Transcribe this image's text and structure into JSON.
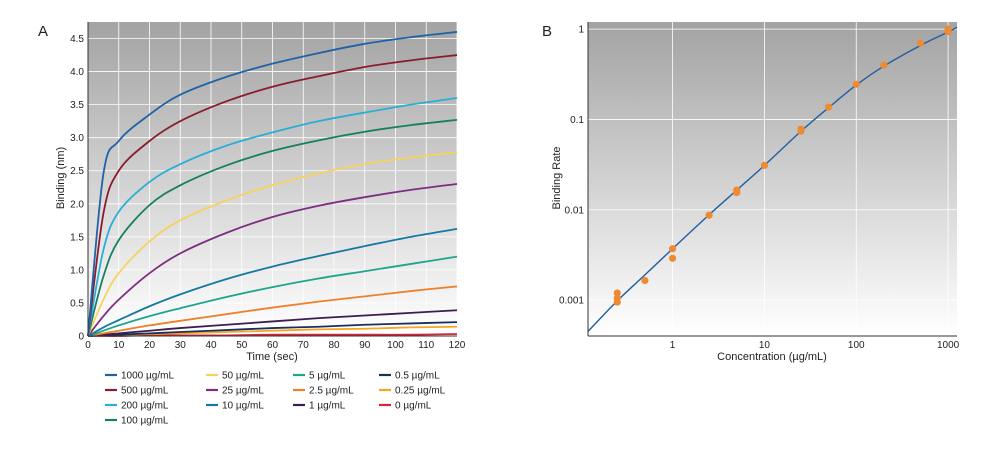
{
  "chart_data": [
    {
      "panel": "A",
      "type": "line",
      "xlabel": "Time (sec)",
      "ylabel": "Binding (nm)",
      "xlim": [
        0,
        120
      ],
      "ylim": [
        0,
        4.75
      ],
      "xticks": [
        0,
        10,
        20,
        30,
        40,
        50,
        60,
        70,
        80,
        90,
        100,
        110,
        120
      ],
      "yticks": [
        0,
        0.5,
        1.0,
        1.5,
        2.0,
        2.5,
        3.0,
        3.5,
        4.0,
        4.5
      ],
      "yticklabels": [
        "0",
        "0.5",
        "1.0",
        "1.5",
        "2.0",
        "2.5",
        "3.0",
        "3.5",
        "4.0",
        "4.5"
      ],
      "grid": true,
      "legend_position": "below",
      "x": [
        0,
        5,
        10,
        20,
        30,
        45,
        60,
        75,
        90,
        105,
        120
      ],
      "series": [
        {
          "name": "1000 µg/mL",
          "color": "#1f63a6",
          "values": [
            0,
            2.45,
            2.95,
            3.35,
            3.65,
            3.92,
            4.12,
            4.28,
            4.42,
            4.52,
            4.6
          ]
        },
        {
          "name": "500 µg/mL",
          "color": "#8b1c2c",
          "values": [
            0,
            1.85,
            2.5,
            2.95,
            3.25,
            3.55,
            3.77,
            3.93,
            4.07,
            4.17,
            4.25
          ]
        },
        {
          "name": "200 µg/mL",
          "color": "#2aaed6",
          "values": [
            0,
            1.3,
            1.88,
            2.33,
            2.6,
            2.88,
            3.08,
            3.25,
            3.38,
            3.5,
            3.6
          ]
        },
        {
          "name": "100 µg/mL",
          "color": "#148063",
          "values": [
            0,
            0.9,
            1.45,
            1.98,
            2.28,
            2.58,
            2.8,
            2.96,
            3.09,
            3.19,
            3.27
          ]
        },
        {
          "name": "50 µg/mL",
          "color": "#f4d35e",
          "values": [
            0,
            0.55,
            0.95,
            1.43,
            1.75,
            2.05,
            2.28,
            2.46,
            2.6,
            2.7,
            2.78
          ]
        },
        {
          "name": "25 µg/mL",
          "color": "#7d2d82",
          "values": [
            0,
            0.3,
            0.55,
            0.95,
            1.25,
            1.56,
            1.8,
            1.97,
            2.1,
            2.21,
            2.3
          ]
        },
        {
          "name": "10 µg/mL",
          "color": "#1679a3",
          "values": [
            0,
            0.13,
            0.24,
            0.45,
            0.63,
            0.86,
            1.05,
            1.21,
            1.36,
            1.5,
            1.62
          ]
        },
        {
          "name": "5 µg/mL",
          "color": "#1fa58e",
          "values": [
            0,
            0.08,
            0.16,
            0.3,
            0.42,
            0.59,
            0.74,
            0.87,
            0.98,
            1.09,
            1.2
          ]
        },
        {
          "name": "2.5 µg/mL",
          "color": "#f07f2a",
          "values": [
            0,
            0.04,
            0.08,
            0.16,
            0.23,
            0.33,
            0.43,
            0.52,
            0.6,
            0.68,
            0.75
          ]
        },
        {
          "name": "1 µg/mL",
          "color": "#3d1c4f",
          "values": [
            0,
            0.02,
            0.04,
            0.08,
            0.12,
            0.17,
            0.22,
            0.27,
            0.31,
            0.35,
            0.39
          ]
        },
        {
          "name": "0.5 µg/mL",
          "color": "#1b2f5e",
          "values": [
            0,
            0.01,
            0.02,
            0.04,
            0.06,
            0.09,
            0.12,
            0.14,
            0.17,
            0.19,
            0.21
          ]
        },
        {
          "name": "0.25 µg/mL",
          "color": "#f5a623",
          "values": [
            0,
            0.01,
            0.01,
            0.03,
            0.04,
            0.06,
            0.08,
            0.1,
            0.11,
            0.13,
            0.14
          ]
        },
        {
          "name": "0 µg/mL",
          "color": "#d6243a",
          "values": [
            0,
            0.0,
            0.0,
            0.01,
            0.01,
            0.01,
            0.02,
            0.02,
            0.02,
            0.02,
            0.03
          ]
        }
      ],
      "legend_columns": [
        [
          "1000 µg/mL",
          "500 µg/mL",
          "200 µg/mL",
          "100 µg/mL"
        ],
        [
          "50 µg/mL",
          "25 µg/mL",
          "10 µg/mL"
        ],
        [
          "5 µg/mL",
          "2.5 µg/mL",
          "1 µg/mL"
        ],
        [
          "0.5 µg/mL",
          "0.25 µg/mL",
          "0 µg/mL"
        ]
      ]
    },
    {
      "panel": "B",
      "type": "scatter",
      "xlabel": "Concentration (µg/mL)",
      "ylabel": "Binding Rate",
      "x_scale": "log",
      "y_scale": "log",
      "xlim": [
        0.12,
        1250
      ],
      "ylim": [
        0.0004,
        1.2
      ],
      "xticks": [
        1,
        10,
        100,
        1000
      ],
      "xticklabels": [
        "1",
        "10",
        "100",
        "1000"
      ],
      "yticks": [
        0.001,
        0.01,
        0.1,
        1
      ],
      "yticklabels": [
        "0.001",
        "0.01",
        "0.1",
        "1"
      ],
      "grid": true,
      "point_color": "#f08a30",
      "line_color": "#1f5fa0",
      "points": [
        {
          "x": 0.25,
          "y": 0.0012
        },
        {
          "x": 0.25,
          "y": 0.00105
        },
        {
          "x": 0.25,
          "y": 0.00095
        },
        {
          "x": 0.5,
          "y": 0.00165
        },
        {
          "x": 1,
          "y": 0.0037
        },
        {
          "x": 1,
          "y": 0.0029
        },
        {
          "x": 2.5,
          "y": 0.0087
        },
        {
          "x": 5,
          "y": 0.0165
        },
        {
          "x": 5,
          "y": 0.0155
        },
        {
          "x": 10,
          "y": 0.031
        },
        {
          "x": 25,
          "y": 0.078
        },
        {
          "x": 25,
          "y": 0.074
        },
        {
          "x": 50,
          "y": 0.137
        },
        {
          "x": 100,
          "y": 0.245
        },
        {
          "x": 200,
          "y": 0.4
        },
        {
          "x": 500,
          "y": 0.7
        },
        {
          "x": 1000,
          "y": 1.0
        },
        {
          "x": 1000,
          "y": 0.94
        }
      ],
      "fit": {
        "x": [
          0.12,
          0.25,
          0.5,
          1,
          2.5,
          5,
          10,
          25,
          50,
          100,
          200,
          500,
          1000,
          1250
        ],
        "y": [
          0.00045,
          0.00098,
          0.0019,
          0.0037,
          0.0088,
          0.0165,
          0.031,
          0.074,
          0.135,
          0.24,
          0.39,
          0.66,
          0.93,
          1.05
        ]
      }
    }
  ]
}
